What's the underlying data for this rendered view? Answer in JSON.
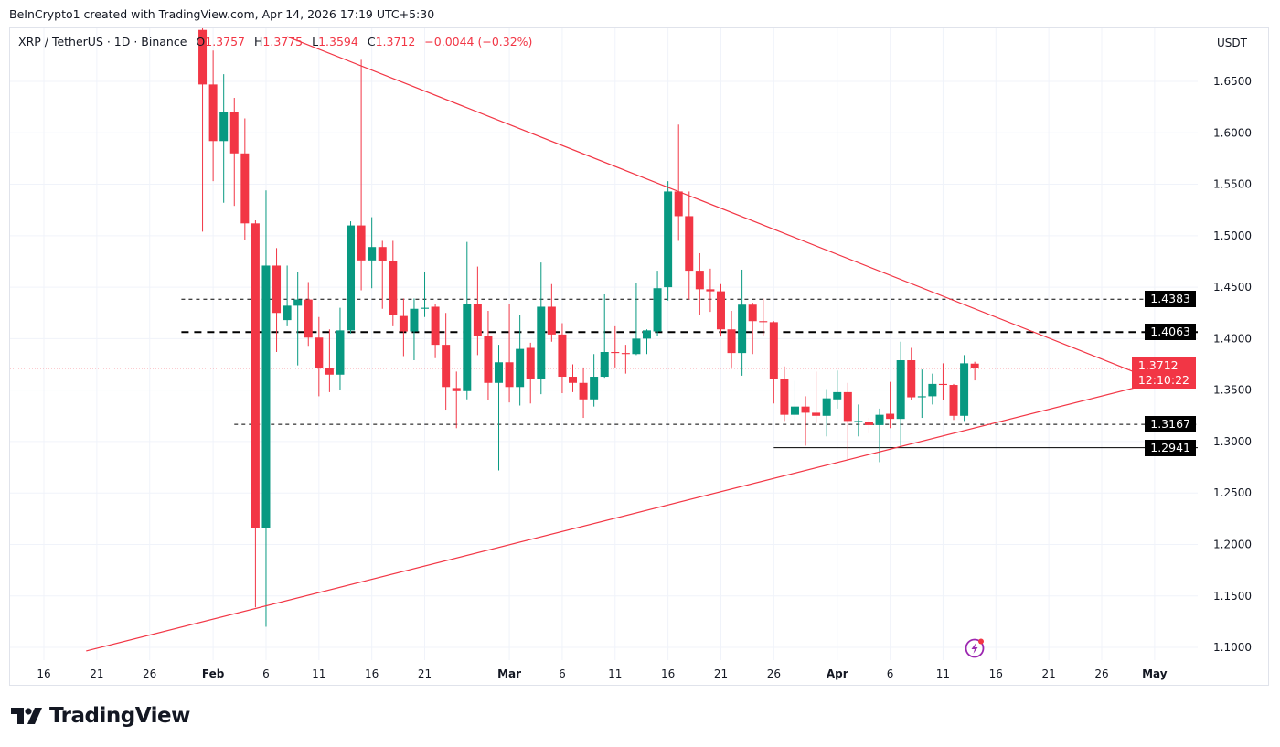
{
  "credit": "BeInCrypto1 created with TradingView.com, Apr 14, 2026 17:19 UTC+5:30",
  "legend": {
    "symbol": "XRP / TetherUS · 1D · Binance",
    "open_label": "O",
    "open": "1.3757",
    "high_label": "H",
    "high": "1.3775",
    "low_label": "L",
    "low": "1.3594",
    "close_label": "C",
    "close": "1.3712",
    "change": "−0.0044 (−0.32%)"
  },
  "price_axis_unit": "USDT",
  "current_price": {
    "value": "1.3712",
    "countdown": "12:10:22"
  },
  "footer_logo": "TradingView",
  "colors": {
    "up": "#089981",
    "down": "#f23645",
    "trendline": "#f23645",
    "level": "#000000"
  },
  "icons": {
    "alert": "lightning-bolt-icon"
  },
  "chart_data": {
    "type": "candlestick",
    "symbol": "XRP/USDT",
    "interval": "1D",
    "ylim": [
      1.08,
      1.695
    ],
    "xlim": [
      "2026-01-12",
      "2026-05-08"
    ],
    "grid": true,
    "y_ticks": [
      "1.1000",
      "1.1500",
      "1.2000",
      "1.2500",
      "1.3000",
      "1.3500",
      "1.4000",
      "1.4500",
      "1.5000",
      "1.5500",
      "1.6000",
      "1.6500"
    ],
    "x_ticks": [
      {
        "date": "2026-01-16",
        "label": "16"
      },
      {
        "date": "2026-01-21",
        "label": "21"
      },
      {
        "date": "2026-01-26",
        "label": "26"
      },
      {
        "date": "2026-02-01",
        "label": "Feb",
        "month": true
      },
      {
        "date": "2026-02-06",
        "label": "6"
      },
      {
        "date": "2026-02-11",
        "label": "11"
      },
      {
        "date": "2026-02-16",
        "label": "16"
      },
      {
        "date": "2026-02-21",
        "label": "21"
      },
      {
        "date": "2026-03-01",
        "label": "Mar",
        "month": true
      },
      {
        "date": "2026-03-06",
        "label": "6"
      },
      {
        "date": "2026-03-11",
        "label": "11"
      },
      {
        "date": "2026-03-16",
        "label": "16"
      },
      {
        "date": "2026-03-21",
        "label": "21"
      },
      {
        "date": "2026-03-26",
        "label": "26"
      },
      {
        "date": "2026-04-01",
        "label": "Apr",
        "month": true
      },
      {
        "date": "2026-04-06",
        "label": "6"
      },
      {
        "date": "2026-04-11",
        "label": "11"
      },
      {
        "date": "2026-04-16",
        "label": "16"
      },
      {
        "date": "2026-04-21",
        "label": "21"
      },
      {
        "date": "2026-04-26",
        "label": "26"
      },
      {
        "date": "2026-05-01",
        "label": "May",
        "month": true
      }
    ],
    "candles_columns": [
      "date",
      "open",
      "high",
      "low",
      "close"
    ],
    "candles": [
      [
        "2026-01-31",
        1.7,
        1.71,
        1.504,
        1.647
      ],
      [
        "2026-02-01",
        1.647,
        1.68,
        1.553,
        1.592
      ],
      [
        "2026-02-02",
        1.592,
        1.657,
        1.532,
        1.62
      ],
      [
        "2026-02-03",
        1.62,
        1.634,
        1.529,
        1.58
      ],
      [
        "2026-02-04",
        1.58,
        1.614,
        1.496,
        1.512
      ],
      [
        "2026-02-05",
        1.512,
        1.515,
        1.139,
        1.216
      ],
      [
        "2026-02-06",
        1.216,
        1.544,
        1.12,
        1.471
      ],
      [
        "2026-02-07",
        1.471,
        1.488,
        1.387,
        1.425
      ],
      [
        "2026-02-08",
        1.418,
        1.471,
        1.412,
        1.432
      ],
      [
        "2026-02-09",
        1.432,
        1.465,
        1.374,
        1.438
      ],
      [
        "2026-02-10",
        1.438,
        1.455,
        1.393,
        1.401
      ],
      [
        "2026-02-11",
        1.401,
        1.421,
        1.344,
        1.371
      ],
      [
        "2026-02-12",
        1.371,
        1.409,
        1.348,
        1.365
      ],
      [
        "2026-02-13",
        1.365,
        1.43,
        1.35,
        1.408
      ],
      [
        "2026-02-14",
        1.408,
        1.514,
        1.405,
        1.51
      ],
      [
        "2026-02-15",
        1.51,
        1.671,
        1.447,
        1.476
      ],
      [
        "2026-02-16",
        1.476,
        1.518,
        1.449,
        1.489
      ],
      [
        "2026-02-17",
        1.489,
        1.495,
        1.429,
        1.475
      ],
      [
        "2026-02-18",
        1.475,
        1.495,
        1.412,
        1.423
      ],
      [
        "2026-02-19",
        1.422,
        1.439,
        1.383,
        1.407
      ],
      [
        "2026-02-20",
        1.407,
        1.439,
        1.379,
        1.429
      ],
      [
        "2026-02-21",
        1.429,
        1.465,
        1.421,
        1.43
      ],
      [
        "2026-02-22",
        1.431,
        1.434,
        1.381,
        1.394
      ],
      [
        "2026-02-23",
        1.394,
        1.425,
        1.331,
        1.353
      ],
      [
        "2026-02-24",
        1.352,
        1.368,
        1.313,
        1.349
      ],
      [
        "2026-02-25",
        1.349,
        1.494,
        1.341,
        1.434
      ],
      [
        "2026-02-26",
        1.434,
        1.47,
        1.384,
        1.403
      ],
      [
        "2026-02-27",
        1.403,
        1.427,
        1.34,
        1.357
      ],
      [
        "2026-02-28",
        1.357,
        1.394,
        1.272,
        1.377
      ],
      [
        "2026-03-01",
        1.377,
        1.434,
        1.338,
        1.353
      ],
      [
        "2026-03-02",
        1.353,
        1.423,
        1.335,
        1.39
      ],
      [
        "2026-03-03",
        1.391,
        1.396,
        1.337,
        1.361
      ],
      [
        "2026-03-04",
        1.361,
        1.474,
        1.346,
        1.431
      ],
      [
        "2026-03-05",
        1.431,
        1.453,
        1.397,
        1.404
      ],
      [
        "2026-03-06",
        1.404,
        1.415,
        1.347,
        1.363
      ],
      [
        "2026-03-07",
        1.363,
        1.375,
        1.348,
        1.357
      ],
      [
        "2026-03-08",
        1.357,
        1.372,
        1.323,
        1.341
      ],
      [
        "2026-03-09",
        1.341,
        1.385,
        1.334,
        1.363
      ],
      [
        "2026-03-10",
        1.363,
        1.443,
        1.362,
        1.387
      ],
      [
        "2026-03-11",
        1.387,
        1.412,
        1.372,
        1.386
      ],
      [
        "2026-03-12",
        1.386,
        1.394,
        1.366,
        1.385
      ],
      [
        "2026-03-13",
        1.385,
        1.454,
        1.384,
        1.4
      ],
      [
        "2026-03-14",
        1.4,
        1.409,
        1.385,
        1.408
      ],
      [
        "2026-03-15",
        1.407,
        1.466,
        1.403,
        1.449
      ],
      [
        "2026-03-16",
        1.45,
        1.553,
        1.437,
        1.543
      ],
      [
        "2026-03-17",
        1.543,
        1.608,
        1.495,
        1.519
      ],
      [
        "2026-03-18",
        1.519,
        1.543,
        1.438,
        1.466
      ],
      [
        "2026-03-19",
        1.466,
        1.483,
        1.423,
        1.448
      ],
      [
        "2026-03-20",
        1.448,
        1.468,
        1.426,
        1.446
      ],
      [
        "2026-03-21",
        1.446,
        1.453,
        1.402,
        1.409
      ],
      [
        "2026-03-22",
        1.409,
        1.427,
        1.372,
        1.386
      ],
      [
        "2026-03-23",
        1.386,
        1.467,
        1.364,
        1.433
      ],
      [
        "2026-03-24",
        1.433,
        1.435,
        1.385,
        1.417
      ],
      [
        "2026-03-25",
        1.417,
        1.439,
        1.403,
        1.416
      ],
      [
        "2026-03-26",
        1.416,
        1.417,
        1.337,
        1.361
      ],
      [
        "2026-03-27",
        1.361,
        1.373,
        1.32,
        1.326
      ],
      [
        "2026-03-28",
        1.326,
        1.359,
        1.32,
        1.334
      ],
      [
        "2026-03-29",
        1.334,
        1.344,
        1.296,
        1.328
      ],
      [
        "2026-03-30",
        1.328,
        1.368,
        1.318,
        1.325
      ],
      [
        "2026-03-31",
        1.325,
        1.351,
        1.305,
        1.342
      ],
      [
        "2026-04-01",
        1.341,
        1.369,
        1.332,
        1.348
      ],
      [
        "2026-04-02",
        1.348,
        1.357,
        1.282,
        1.32
      ],
      [
        "2026-04-03",
        1.32,
        1.336,
        1.305,
        1.32
      ],
      [
        "2026-04-04",
        1.319,
        1.323,
        1.308,
        1.316
      ],
      [
        "2026-04-05",
        1.316,
        1.332,
        1.28,
        1.326
      ],
      [
        "2026-04-06",
        1.327,
        1.358,
        1.313,
        1.322
      ],
      [
        "2026-04-07",
        1.322,
        1.397,
        1.295,
        1.379
      ],
      [
        "2026-04-08",
        1.379,
        1.391,
        1.34,
        1.343
      ],
      [
        "2026-04-09",
        1.343,
        1.37,
        1.323,
        1.344
      ],
      [
        "2026-04-10",
        1.344,
        1.366,
        1.336,
        1.356
      ],
      [
        "2026-04-11",
        1.356,
        1.376,
        1.34,
        1.355
      ],
      [
        "2026-04-12",
        1.355,
        1.356,
        1.321,
        1.325
      ],
      [
        "2026-04-13",
        1.325,
        1.384,
        1.32,
        1.376
      ],
      [
        "2026-04-14",
        1.3757,
        1.3775,
        1.3594,
        1.3712
      ]
    ],
    "levels": [
      {
        "price": 1.4383,
        "label": "1.4383",
        "style": "dashed",
        "from": "2026-01-29"
      },
      {
        "price": 1.4063,
        "label": "1.4063",
        "style": "dashed-bold",
        "from": "2026-01-29"
      },
      {
        "price": 1.3167,
        "label": "1.3167",
        "style": "dashed",
        "from": "2026-02-03"
      },
      {
        "price": 1.2941,
        "label": "1.2941",
        "style": "solid",
        "from": "2026-03-26"
      }
    ],
    "trendlines": [
      {
        "name": "",
        "from": {
          "date": "2026-02-08",
          "price": 1.6935
        },
        "to": {
          "date": "2026-04-30",
          "price": 1.3639
        }
      },
      {
        "name": "",
        "from": {
          "date": "2026-01-20",
          "price": 1.0965
        },
        "to": {
          "date": "2026-05-04",
          "price": 1.3648
        }
      }
    ],
    "current_price_line": 1.3712
  }
}
